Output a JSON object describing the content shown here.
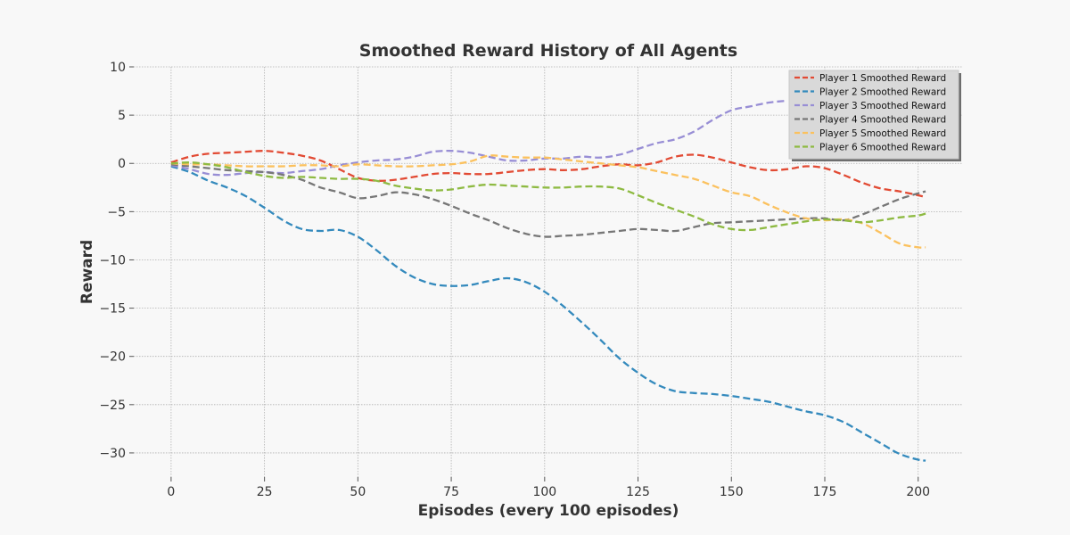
{
  "chart_data": {
    "type": "line",
    "title": "Smoothed Reward History of All Agents",
    "xlabel": "Episodes (every 100 episodes)",
    "ylabel": "Reward",
    "xlim": [
      -10,
      212
    ],
    "ylim": [
      -32.5,
      10
    ],
    "xticks": [
      "0",
      "25",
      "50",
      "75",
      "100",
      "125",
      "150",
      "175",
      "200"
    ],
    "yticks": [
      "10",
      "5",
      "0",
      "−5",
      "−10",
      "−15",
      "−20",
      "−25",
      "−30"
    ],
    "xtick_values": [
      0,
      25,
      50,
      75,
      100,
      125,
      150,
      175,
      200
    ],
    "ytick_values": [
      10,
      5,
      0,
      -5,
      -10,
      -15,
      -20,
      -25,
      -30
    ],
    "grid": true,
    "legend_position": "top-right",
    "x": [
      0,
      5,
      10,
      15,
      20,
      25,
      30,
      35,
      40,
      45,
      50,
      55,
      60,
      65,
      70,
      75,
      80,
      85,
      90,
      95,
      100,
      105,
      110,
      115,
      120,
      125,
      130,
      135,
      140,
      145,
      150,
      155,
      160,
      165,
      170,
      175,
      180,
      185,
      190,
      195,
      200,
      202
    ],
    "series": [
      {
        "name": "Player 1 Smoothed Reward",
        "color": "#e24a33",
        "values": [
          0.1,
          0.7,
          1.0,
          1.1,
          1.2,
          1.3,
          1.1,
          0.8,
          0.3,
          -0.6,
          -1.5,
          -1.8,
          -1.7,
          -1.4,
          -1.1,
          -1.0,
          -1.1,
          -1.1,
          -0.9,
          -0.7,
          -0.6,
          -0.7,
          -0.6,
          -0.3,
          -0.1,
          -0.2,
          0.1,
          0.7,
          0.9,
          0.6,
          0.1,
          -0.4,
          -0.7,
          -0.6,
          -0.3,
          -0.5,
          -1.2,
          -2.0,
          -2.6,
          -2.9,
          -3.3,
          -3.5
        ]
      },
      {
        "name": "Player 2 Smoothed Reward",
        "color": "#348abd",
        "values": [
          -0.3,
          -0.9,
          -1.8,
          -2.5,
          -3.4,
          -4.6,
          -5.9,
          -6.8,
          -7.0,
          -6.9,
          -7.6,
          -9.0,
          -10.6,
          -11.8,
          -12.5,
          -12.7,
          -12.6,
          -12.2,
          -11.9,
          -12.3,
          -13.3,
          -14.8,
          -16.5,
          -18.3,
          -20.2,
          -21.7,
          -22.9,
          -23.6,
          -23.8,
          -23.9,
          -24.1,
          -24.4,
          -24.7,
          -25.2,
          -25.7,
          -26.1,
          -26.8,
          -27.9,
          -29.0,
          -30.1,
          -30.7,
          -30.8
        ]
      },
      {
        "name": "Player 3 Smoothed Reward",
        "color": "#988ed5",
        "values": [
          -0.2,
          -0.6,
          -1.1,
          -1.2,
          -1.0,
          -0.9,
          -1.0,
          -0.8,
          -0.6,
          -0.2,
          0.1,
          0.3,
          0.4,
          0.7,
          1.2,
          1.3,
          1.1,
          0.7,
          0.3,
          0.3,
          0.5,
          0.5,
          0.7,
          0.6,
          0.9,
          1.5,
          2.1,
          2.5,
          3.3,
          4.5,
          5.5,
          5.9,
          6.3,
          6.5,
          null,
          null,
          null,
          null,
          null,
          null,
          null,
          null
        ]
      },
      {
        "name": "Player 4 Smoothed Reward",
        "color": "#777777",
        "values": [
          -0.1,
          -0.3,
          -0.5,
          -0.7,
          -0.8,
          -0.9,
          -1.2,
          -1.7,
          -2.5,
          -3.0,
          -3.6,
          -3.4,
          -3.0,
          -3.2,
          -3.7,
          -4.4,
          -5.2,
          -5.9,
          -6.7,
          -7.3,
          -7.6,
          -7.5,
          -7.4,
          -7.2,
          -7.0,
          -6.8,
          -6.9,
          -7.0,
          -6.6,
          -6.2,
          -6.1,
          -6.0,
          -5.9,
          -5.8,
          -5.7,
          -5.7,
          -5.9,
          -5.3,
          -4.5,
          -3.7,
          -3.1,
          -2.9
        ]
      },
      {
        "name": "Player 5 Smoothed Reward",
        "color": "#fbc15e",
        "values": [
          0.0,
          -0.1,
          -0.1,
          -0.2,
          -0.3,
          -0.3,
          -0.3,
          -0.2,
          -0.2,
          -0.3,
          -0.1,
          -0.2,
          -0.3,
          -0.3,
          -0.2,
          -0.1,
          0.2,
          0.8,
          0.7,
          0.6,
          0.6,
          0.4,
          0.2,
          0.0,
          -0.2,
          -0.4,
          -0.8,
          -1.2,
          -1.6,
          -2.3,
          -3.0,
          -3.4,
          -4.3,
          -5.1,
          -5.7,
          -5.9,
          -5.8,
          -6.2,
          -7.2,
          -8.3,
          -8.7,
          -8.7
        ]
      },
      {
        "name": "Player 6 Smoothed Reward",
        "color": "#8eba42",
        "values": [
          0.0,
          0.1,
          -0.1,
          -0.4,
          -0.9,
          -1.3,
          -1.5,
          -1.4,
          -1.5,
          -1.6,
          -1.6,
          -1.8,
          -2.3,
          -2.6,
          -2.8,
          -2.7,
          -2.4,
          -2.2,
          -2.3,
          -2.4,
          -2.5,
          -2.5,
          -2.4,
          -2.4,
          -2.6,
          -3.3,
          -4.1,
          -4.8,
          -5.5,
          -6.3,
          -6.8,
          -6.9,
          -6.6,
          -6.3,
          -6.0,
          -5.8,
          -5.9,
          -6.1,
          -5.9,
          -5.6,
          -5.4,
          -5.2
        ]
      }
    ]
  }
}
